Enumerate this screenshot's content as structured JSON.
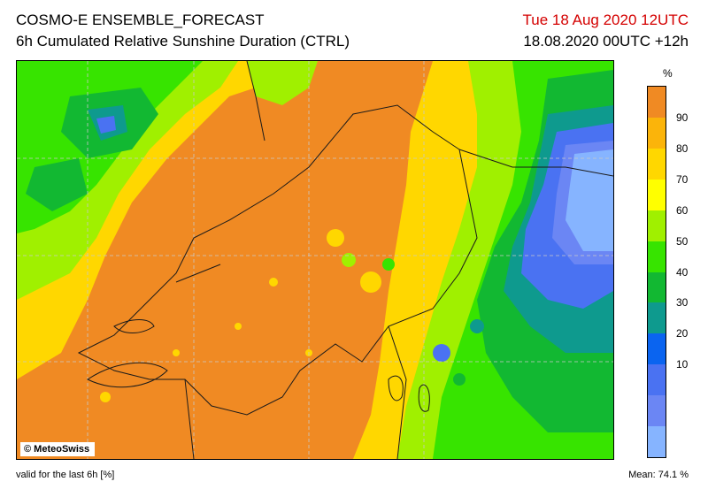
{
  "header": {
    "title": "COSMO-E ENSEMBLE_FORECAST",
    "subtitle": "6h Cumulated Relative Sunshine Duration (CTRL)",
    "valid_time": "Tue 18 Aug 2020 12UTC",
    "run_step": "18.08.2020 00UTC +12h"
  },
  "map": {
    "credit": "© MeteoSwiss",
    "base_color": "#f08a23"
  },
  "legend": {
    "unit": "%",
    "labels": [
      "90",
      "80",
      "70",
      "60",
      "50",
      "40",
      "30",
      "20",
      "10"
    ],
    "colors": [
      "#f08a23",
      "#fbb40a",
      "#ffd700",
      "#ffff00",
      "#a0f000",
      "#37e400",
      "#12b832",
      "#0e9a8e",
      "#0a64f0",
      "#4a72f2",
      "#6b86f4",
      "#86b4ff"
    ]
  },
  "footer": {
    "note": "valid for the last 6h [%]",
    "mean": "Mean:  74.1 %"
  }
}
